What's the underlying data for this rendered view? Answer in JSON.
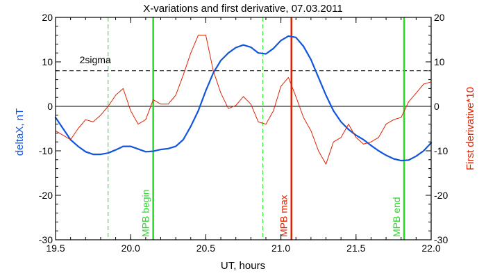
{
  "chart_data": {
    "type": "line",
    "title": "X-variations and first derivative, 07.03.2011",
    "xlabel": "UT, hours",
    "ylabel_left": "deltaX, nT",
    "ylabel_right": "First derivative*10",
    "xlim": [
      19.5,
      22.0
    ],
    "ylim": [
      -30,
      20
    ],
    "x_ticks": [
      "19.5",
      "20.0",
      "20.5",
      "21.0",
      "21.5",
      "22.0"
    ],
    "y_ticks": [
      "20",
      "10",
      "0",
      "-10",
      "-20",
      "-30"
    ],
    "colors": {
      "deltaX": "#1155dd",
      "derivative": "#dd2200",
      "mpb_boundary": "#22dd22",
      "mpb_max": "#dd2200",
      "text_left": "#1155dd",
      "text_right": "#dd2200"
    },
    "series": [
      {
        "key": "deltaX",
        "x": [
          19.5,
          19.55,
          19.6,
          19.65,
          19.7,
          19.75,
          19.8,
          19.85,
          19.9,
          19.95,
          20.0,
          20.05,
          20.1,
          20.15,
          20.2,
          20.25,
          20.3,
          20.35,
          20.4,
          20.45,
          20.5,
          20.55,
          20.6,
          20.65,
          20.7,
          20.75,
          20.8,
          20.85,
          20.9,
          20.95,
          21.0,
          21.05,
          21.1,
          21.15,
          21.2,
          21.25,
          21.3,
          21.35,
          21.4,
          21.45,
          21.5,
          21.55,
          21.6,
          21.65,
          21.7,
          21.75,
          21.8,
          21.85,
          21.9,
          21.95,
          22.0
        ],
        "values": [
          -2.5,
          -5,
          -7.5,
          -9,
          -10.2,
          -10.8,
          -10.8,
          -10.5,
          -9.8,
          -9,
          -9,
          -9.6,
          -10.2,
          -10.1,
          -9.7,
          -9.5,
          -9,
          -7.5,
          -4.5,
          -1,
          3.5,
          7.5,
          10.3,
          12,
          13.2,
          13.8,
          13.3,
          12,
          11.8,
          13,
          14.8,
          15.8,
          15.5,
          13.5,
          10.5,
          6.5,
          2.5,
          -1,
          -3.5,
          -5.2,
          -6.5,
          -7.5,
          -8.8,
          -10,
          -11,
          -11.8,
          -12.2,
          -12.1,
          -11.2,
          -10,
          -8.2
        ]
      },
      {
        "key": "derivative",
        "x": [
          19.5,
          19.55,
          19.6,
          19.65,
          19.7,
          19.75,
          19.8,
          19.85,
          19.9,
          19.95,
          20.0,
          20.05,
          20.1,
          20.15,
          20.2,
          20.25,
          20.3,
          20.35,
          20.4,
          20.45,
          20.5,
          20.55,
          20.6,
          20.65,
          20.7,
          20.75,
          20.8,
          20.85,
          20.9,
          20.95,
          21.0,
          21.05,
          21.1,
          21.15,
          21.2,
          21.25,
          21.3,
          21.35,
          21.4,
          21.45,
          21.5,
          21.55,
          21.6,
          21.65,
          21.7,
          21.75,
          21.8,
          21.85,
          21.9,
          21.95,
          22.0
        ],
        "values": [
          -5.5,
          -6.5,
          -7.5,
          -5,
          -3,
          -3.5,
          -2,
          0,
          2.5,
          4,
          -1,
          -4,
          -3,
          1.5,
          0.5,
          0.5,
          2.5,
          7,
          12,
          16,
          16,
          8,
          3,
          -0.5,
          0.2,
          2.2,
          0.5,
          -3.5,
          -4,
          -1,
          4.5,
          6.5,
          2.2,
          -2.5,
          -5.5,
          -10,
          -13,
          -8,
          -7,
          -4,
          -7,
          -8.5,
          -8,
          -7,
          -4,
          -3,
          -2.5,
          1,
          3,
          5,
          5.5
        ]
      }
    ],
    "horizontal_lines": [
      {
        "key": "zero",
        "y": 0,
        "style": "solid"
      },
      {
        "key": "two_sigma",
        "y": 8,
        "style": "dashed",
        "label": "2sigma"
      }
    ],
    "vertical_lines": [
      {
        "key": "dash_1",
        "x": 19.85,
        "style": "dashed",
        "color": "mpb_boundary",
        "label": ""
      },
      {
        "key": "mpb_begin",
        "x": 20.15,
        "style": "solid",
        "color": "mpb_boundary",
        "label": "MPB begin"
      },
      {
        "key": "dash_2",
        "x": 20.88,
        "style": "dashed",
        "color": "mpb_boundary",
        "label": ""
      },
      {
        "key": "mpb_max",
        "x": 21.07,
        "style": "solid",
        "color": "mpb_max",
        "label": "MPB max"
      },
      {
        "key": "mpb_end",
        "x": 21.82,
        "style": "solid",
        "color": "mpb_boundary",
        "label": "MPB end"
      }
    ]
  }
}
